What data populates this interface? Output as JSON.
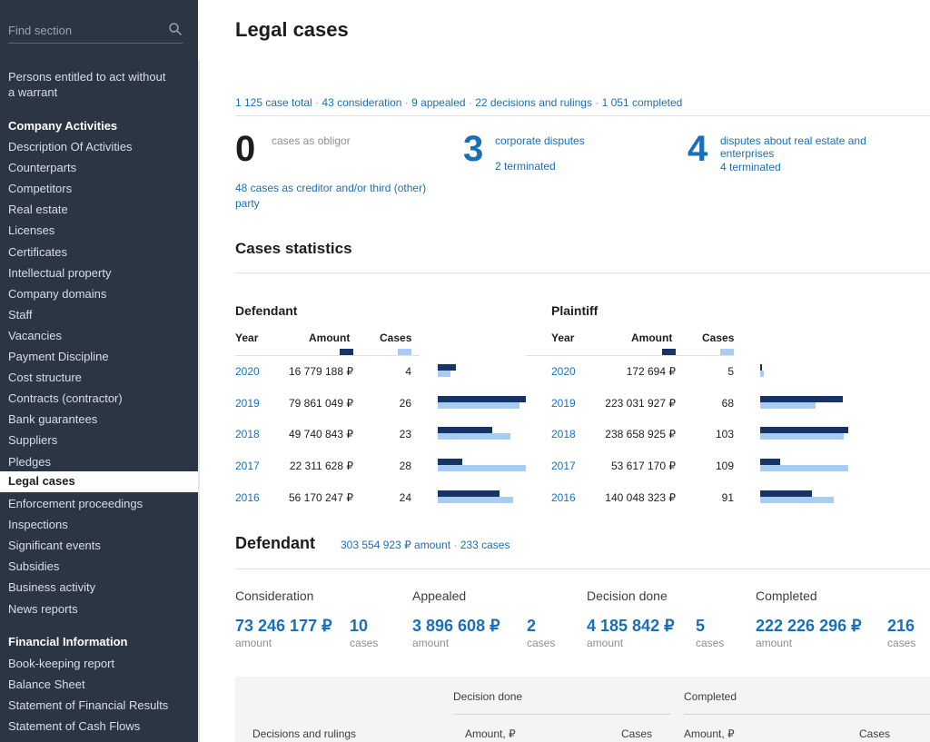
{
  "sidebar": {
    "search_placeholder": "Find section",
    "top_item": "Persons entitled to act without a warrant",
    "top_item_line1": "Persons entitled to act without",
    "top_item_line2": "a warrant",
    "company_heading": "Company Activities",
    "company_items": [
      "Description Of Activities",
      "Counterparts",
      "Competitors",
      "Real estate",
      "Licenses",
      "Certificates",
      "Intellectual property",
      "Company domains",
      "Staff",
      "Vacancies",
      "Payment Discipline",
      "Cost structure",
      "Contracts (contractor)",
      "Bank guarantees",
      "Suppliers",
      "Pledges"
    ],
    "active_item": "Legal cases",
    "company_items_after": [
      "Enforcement proceedings",
      "Inspections",
      "Significant events",
      "Subsidies",
      "Business activity",
      "News reports"
    ],
    "financial_heading": "Financial Information",
    "financial_items": [
      "Book-keeping report",
      "Balance Sheet",
      "Statement of Financial Results",
      "Statement of Cash Flows"
    ]
  },
  "page": {
    "title": "Legal cases",
    "summary_links": [
      "1 125 case total",
      "43 consideration",
      "9 appealed",
      "22 decisions and rulings",
      "1 051 completed"
    ],
    "obligor_count": "0",
    "obligor_label": "cases as obligor",
    "creditor_line1": "48 cases as creditor and/or third (other)",
    "creditor_line2": "party",
    "corporate_count": "3",
    "corporate_label": "corporate disputes",
    "corporate_terminated": "2 terminated",
    "realestate_count": "4",
    "realestate_line1": "disputes about real estate and",
    "realestate_line2": "enterprises",
    "realestate_terminated": "4 terminated"
  },
  "stats": {
    "title": "Cases statistics",
    "col_year": "Year",
    "col_amount": "Amount",
    "col_cases": "Cases",
    "colors": {
      "amount": "#163466",
      "cases": "#a8ccf2"
    },
    "defendant": {
      "title": "Defendant",
      "rows": [
        {
          "year": "2020",
          "amount": "16 779 188 ₽",
          "amount_value": 16779188,
          "cases": "4",
          "cases_value": 4
        },
        {
          "year": "2019",
          "amount": "79 861 049 ₽",
          "amount_value": 79861049,
          "cases": "26",
          "cases_value": 26
        },
        {
          "year": "2018",
          "amount": "49 740 843 ₽",
          "amount_value": 49740843,
          "cases": "23",
          "cases_value": 23
        },
        {
          "year": "2017",
          "amount": "22 311 628 ₽",
          "amount_value": 22311628,
          "cases": "28",
          "cases_value": 28
        },
        {
          "year": "2016",
          "amount": "56 170 247 ₽",
          "amount_value": 56170247,
          "cases": "24",
          "cases_value": 24
        }
      ]
    },
    "plaintiff": {
      "title": "Plaintiff",
      "rows": [
        {
          "year": "2020",
          "amount": "172 694 ₽",
          "amount_value": 172694,
          "cases": "5",
          "cases_value": 5
        },
        {
          "year": "2019",
          "amount": "223 031 927 ₽",
          "amount_value": 223031927,
          "cases": "68",
          "cases_value": 68
        },
        {
          "year": "2018",
          "amount": "238 658 925 ₽",
          "amount_value": 238658925,
          "cases": "103",
          "cases_value": 103
        },
        {
          "year": "2017",
          "amount": "53 617 170 ₽",
          "amount_value": 53617170,
          "cases": "109",
          "cases_value": 109
        },
        {
          "year": "2016",
          "amount": "140 048 323 ₽",
          "amount_value": 140048323,
          "cases": "91",
          "cases_value": 91
        }
      ]
    }
  },
  "defendant_summary": {
    "title": "Defendant",
    "total_amount": "303 554 923 ₽ amount",
    "total_cases": "233 cases",
    "blocks": [
      {
        "label": "Consideration",
        "amount": "73 246 177 ₽",
        "cases": "10"
      },
      {
        "label": "Appealed",
        "amount": "3 896 608 ₽",
        "cases": "2"
      },
      {
        "label": "Decision done",
        "amount": "4 185 842 ₽",
        "cases": "5"
      },
      {
        "label": "Completed",
        "amount": "222 226 296 ₽",
        "cases": "216"
      }
    ],
    "amount_sub": "amount",
    "cases_sub": "cases"
  },
  "table": {
    "row_label": "Decisions and rulings",
    "group1": "Decision done",
    "group2": "Completed",
    "col_amount": "Amount, ₽",
    "col_cases": "Cases"
  }
}
